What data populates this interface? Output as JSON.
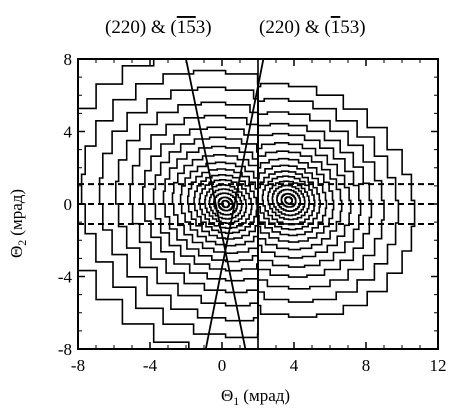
{
  "chart_data": {
    "type": "contour",
    "title_left": "(220) & (1̄5̄3)",
    "title_right": "(220) & (1̄5̄3)",
    "title_left_parts": {
      "prefix": "(220) & (",
      "bar_digits": "15",
      "suffix": "3)"
    },
    "title_right_parts": {
      "prefix": "(220) & (",
      "bar_digits": "1",
      "mid": "5",
      "suffix": "3)"
    },
    "xlabel_main": "Θ",
    "xlabel_sub": "1",
    "xlabel_unit": "(мрад)",
    "ylabel_main": "Θ",
    "ylabel_sub": "2",
    "ylabel_unit": "(мрад)",
    "xlim": [
      -8,
      12
    ],
    "ylim": [
      -8,
      8
    ],
    "xticks": [
      "-8",
      "-4",
      "0",
      "4",
      "8",
      "12"
    ],
    "xtick_values": [
      -8,
      -4,
      0,
      4,
      8,
      12
    ],
    "yticks": [
      "8",
      "4",
      "0",
      "-4",
      "-8"
    ],
    "ytick_values": [
      8,
      4,
      0,
      -4,
      -8
    ],
    "peaks": [
      {
        "center": [
          0.2,
          0.0
        ],
        "radii": [
          9.2,
          8.0,
          7.0,
          6.1,
          5.3,
          4.6,
          4.0,
          3.45,
          2.95,
          2.5,
          2.1,
          1.75,
          1.45,
          1.15,
          0.9,
          0.65,
          0.4,
          0.2
        ],
        "cut": "x<=2.0"
      },
      {
        "center": [
          3.7,
          0.2
        ],
        "radii": [
          7.0,
          6.1,
          5.3,
          4.6,
          4.0,
          3.45,
          2.95,
          2.5,
          2.1,
          1.75,
          1.45,
          1.15,
          0.9,
          0.65,
          0.4,
          0.2
        ],
        "cut": "x>=2.0"
      }
    ],
    "lines": [
      {
        "from": [
          -2.0,
          8.0
        ],
        "to": [
          1.3,
          -8.0
        ],
        "style": "solid"
      },
      {
        "from": [
          2.3,
          8.0
        ],
        "to": [
          -0.9,
          -8.0
        ],
        "style": "solid"
      },
      {
        "from": [
          -8,
          1.1
        ],
        "to": [
          12,
          1.1
        ],
        "style": "dashed"
      },
      {
        "from": [
          -8,
          0.0
        ],
        "to": [
          12,
          0.0
        ],
        "style": "dashed"
      },
      {
        "from": [
          -8,
          -1.1
        ],
        "to": [
          12,
          -1.1
        ],
        "style": "dashed"
      }
    ]
  }
}
